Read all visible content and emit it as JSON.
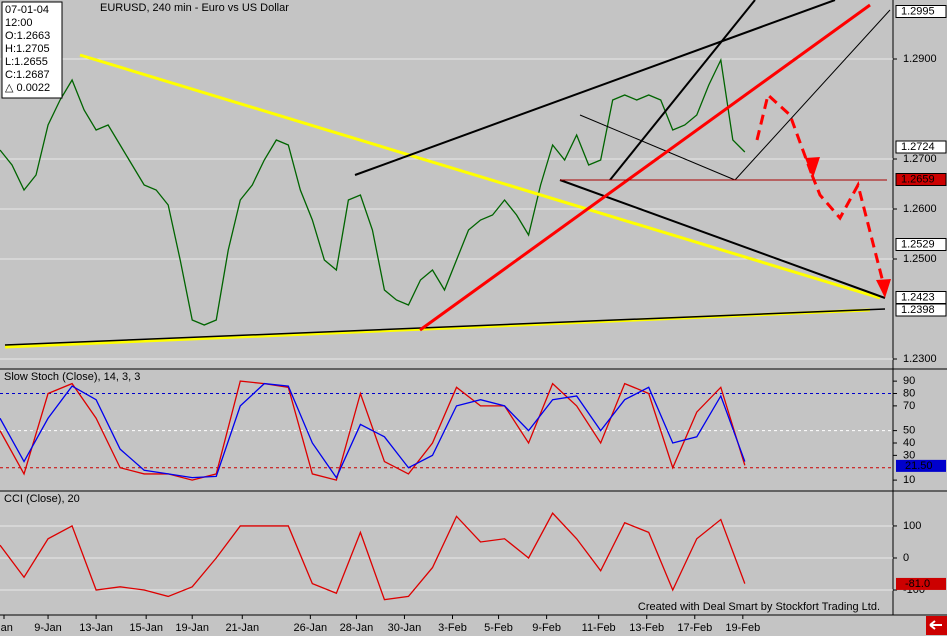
{
  "chart_data": [
    {
      "type": "line",
      "title": "EURUSD, 240 min - Euro vs US Dollar",
      "info": [
        "07-01-04",
        "12:00",
        "O:1.2663",
        "H:1.2705",
        "L:1.2655",
        "C:1.2687",
        "△ 0.0022"
      ],
      "x": [
        0,
        3,
        6,
        9,
        12,
        15,
        18,
        21,
        24,
        27,
        30,
        33,
        36,
        39,
        42,
        45,
        48,
        51,
        54,
        57,
        60,
        63,
        66,
        69,
        72,
        75,
        78,
        81,
        84,
        87,
        90,
        93,
        96,
        99,
        102,
        105,
        108,
        111,
        114,
        117,
        120,
        123,
        126,
        129,
        132,
        135,
        138,
        141,
        144,
        147,
        150,
        153,
        156,
        159,
        162,
        165,
        168,
        171,
        174,
        177,
        180,
        183,
        186
      ],
      "series": [
        {
          "color": "#006400",
          "values": [
            1.2718,
            1.2688,
            1.2638,
            1.2668,
            1.2768,
            1.2818,
            1.2858,
            1.2798,
            1.2758,
            1.2768,
            1.2728,
            1.2688,
            1.2648,
            1.2638,
            1.2608,
            1.2498,
            1.2378,
            1.2368,
            1.2378,
            1.2518,
            1.2618,
            1.2648,
            1.2698,
            1.2738,
            1.2728,
            1.2638,
            1.2578,
            1.2498,
            1.2478,
            1.2618,
            1.2628,
            1.2558,
            1.2438,
            1.2418,
            1.2408,
            1.2458,
            1.2478,
            1.2438,
            1.2498,
            1.2558,
            1.2578,
            1.2588,
            1.2618,
            1.2588,
            1.2548,
            1.2648,
            1.2728,
            1.2698,
            1.2748,
            1.2688,
            1.2698,
            1.2818,
            1.2828,
            1.2818,
            1.2828,
            1.2818,
            1.2758,
            1.2768,
            1.2788,
            1.2848,
            1.2898,
            1.2738,
            1.2714
          ]
        }
      ],
      "xlim": [
        0,
        223
      ],
      "xticks": [
        {
          "value": 1,
          "label": "Jan"
        },
        {
          "value": 12,
          "label": "9-Jan"
        },
        {
          "value": 24,
          "label": "13-Jan"
        },
        {
          "value": 36.5,
          "label": "15-Jan"
        },
        {
          "value": 48,
          "label": "19-Jan"
        },
        {
          "value": 60.5,
          "label": "21-Jan"
        },
        {
          "value": 77.5,
          "label": "26-Jan"
        },
        {
          "value": 89,
          "label": "28-Jan"
        },
        {
          "value": 101,
          "label": "30-Jan"
        },
        {
          "value": 113,
          "label": "3-Feb"
        },
        {
          "value": 124.5,
          "label": "5-Feb"
        },
        {
          "value": 136.5,
          "label": "9-Feb"
        },
        {
          "value": 149.5,
          "label": "11-Feb"
        },
        {
          "value": 161.5,
          "label": "13-Feb"
        },
        {
          "value": 173.5,
          "label": "17-Feb"
        },
        {
          "value": 185.5,
          "label": "19-Feb"
        }
      ],
      "ylim": [
        1.2282,
        1.3018
      ],
      "yticks": [
        {
          "value": 1.29,
          "label": "1.2900"
        },
        {
          "value": 1.27,
          "label": "1.2700"
        },
        {
          "value": 1.26,
          "label": "1.2600"
        },
        {
          "value": 1.25,
          "label": "1.2500"
        },
        {
          "value": 1.23,
          "label": "1.2300"
        }
      ],
      "price_labels": [
        {
          "value": 1.2995,
          "label": "1.2995",
          "fill": "#ffffff",
          "text_color": "#000000"
        },
        {
          "value": 1.2724,
          "label": "1.2724",
          "fill": "#ffffff",
          "text_color": "#000000"
        },
        {
          "value": 1.2659,
          "label": "1.2659",
          "fill": "#cc0000",
          "text_color": "#ffffff"
        },
        {
          "value": 1.2529,
          "label": "1.2529",
          "fill": "#ffffff",
          "text_color": "#000000"
        },
        {
          "value": 1.2423,
          "label": "1.2423",
          "fill": "#ffffff",
          "text_color": "#000000"
        },
        {
          "value": 1.2398,
          "label": "1.2398",
          "fill": "#ffffff",
          "text_color": "#000000"
        }
      ],
      "grid": true,
      "footer": "Created with Deal Smart by Stockfort Trading Ltd."
    },
    {
      "type": "line",
      "title": "Slow Stoch (Close), 14, 3, 3",
      "x": [
        0,
        6,
        12,
        18,
        24,
        30,
        36,
        42,
        48,
        54,
        60,
        66,
        72,
        78,
        84,
        90,
        96,
        102,
        108,
        114,
        120,
        126,
        132,
        138,
        144,
        150,
        156,
        162,
        168,
        174,
        180,
        186
      ],
      "series": [
        {
          "color": "#dd0000",
          "values": [
            50,
            15,
            80,
            88,
            60,
            20,
            15,
            15,
            10,
            15,
            90,
            88,
            85,
            15,
            10,
            80,
            25,
            15,
            40,
            85,
            70,
            70,
            40,
            88,
            70,
            40,
            88,
            80,
            20,
            65,
            85,
            22
          ]
        },
        {
          "color": "#0000ee",
          "values": [
            60,
            25,
            60,
            86,
            75,
            35,
            18,
            15,
            12,
            13,
            70,
            88,
            86,
            40,
            12,
            55,
            45,
            20,
            30,
            70,
            75,
            70,
            50,
            75,
            78,
            50,
            75,
            85,
            40,
            45,
            78,
            25
          ]
        }
      ],
      "xlim": [
        0,
        223
      ],
      "ylim": [
        2,
        99
      ],
      "yticks": [
        90,
        80,
        70,
        50,
        40,
        30,
        10
      ],
      "levels": [
        {
          "value": 80,
          "color": "#0000cc"
        },
        {
          "value": 20,
          "color": "#cc0000"
        },
        {
          "value": 50,
          "color": "#ffffff"
        }
      ],
      "current_label": {
        "value": 21.5,
        "label": "21.50",
        "fill": "#0000cc",
        "text_color": "#ff4040"
      }
    },
    {
      "type": "line",
      "title": "CCI (Close), 20",
      "x": [
        0,
        6,
        12,
        18,
        24,
        30,
        36,
        42,
        48,
        54,
        60,
        66,
        72,
        78,
        84,
        90,
        96,
        102,
        108,
        114,
        120,
        126,
        132,
        138,
        144,
        150,
        156,
        162,
        168,
        174,
        180,
        186
      ],
      "series": [
        {
          "color": "#dd0000",
          "values": [
            40,
            -60,
            60,
            100,
            -100,
            -90,
            -100,
            -120,
            -90,
            0,
            100,
            100,
            100,
            -80,
            -110,
            80,
            -130,
            -120,
            -30,
            130,
            50,
            60,
            0,
            140,
            60,
            -40,
            110,
            80,
            -100,
            60,
            120,
            -80
          ]
        }
      ],
      "xlim": [
        0,
        223
      ],
      "ylim": [
        -178,
        206
      ],
      "yticks": [
        100,
        0,
        -100
      ],
      "grid": true,
      "current_label": {
        "value": -81,
        "label": "-81.0",
        "fill": "#cc0000",
        "text_color": "#000000"
      }
    }
  ]
}
